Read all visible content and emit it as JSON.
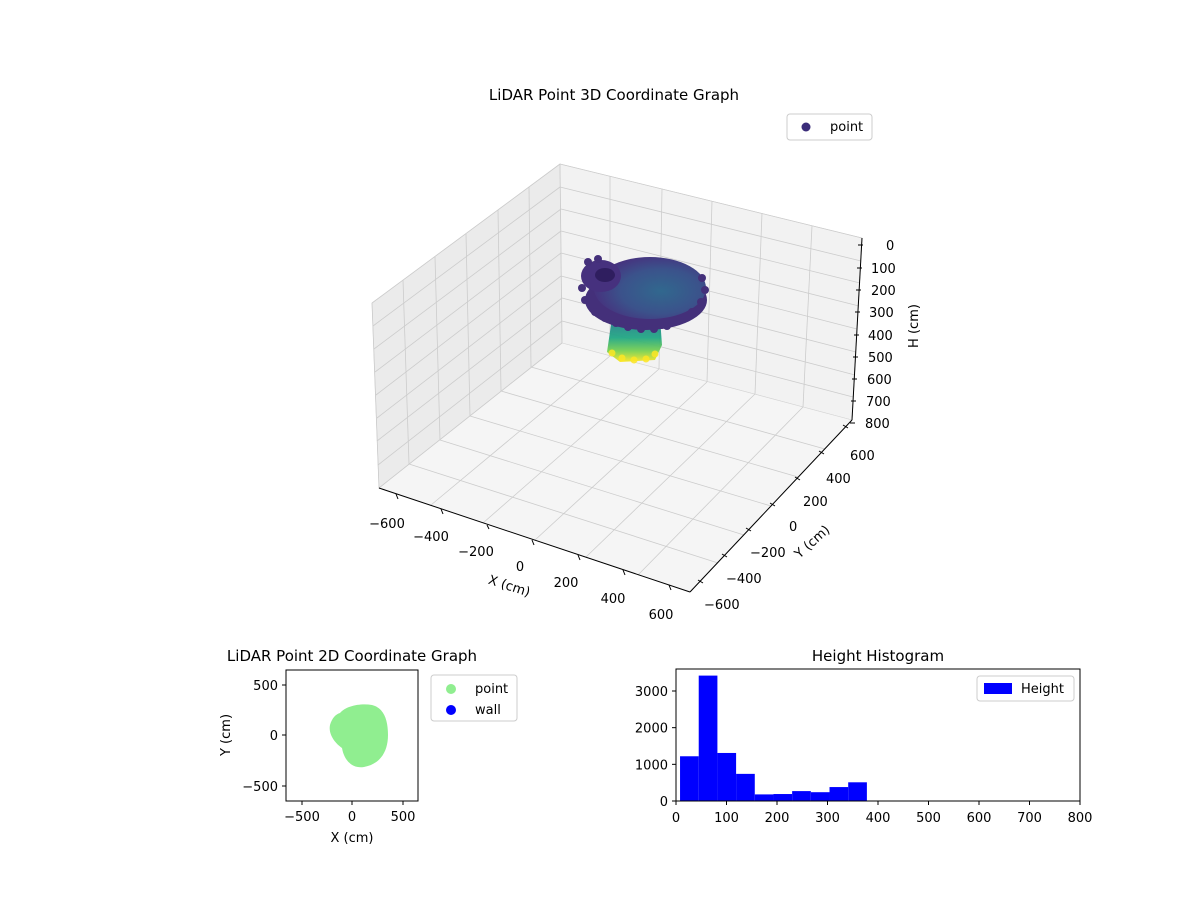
{
  "chart_data": [
    {
      "type": "scatter3d",
      "title": "LiDAR Point 3D Coordinate Graph",
      "xlabel": "X (cm)",
      "ylabel": "Y (cm)",
      "zlabel": "H (cm)",
      "xlim": [
        -600,
        600
      ],
      "ylim": [
        -600,
        600
      ],
      "zlim": [
        0,
        800
      ],
      "z_inverted": true,
      "xticks": [
        "−600",
        "−400",
        "−200",
        "0",
        "200",
        "400",
        "600"
      ],
      "yticks": [
        "−600",
        "−400",
        "−200",
        "0",
        "200",
        "400",
        "600"
      ],
      "zticks": [
        "0",
        "100",
        "200",
        "300",
        "400",
        "500",
        "600",
        "700",
        "800"
      ],
      "grid": true,
      "legend": {
        "position": "top-right",
        "entries": [
          {
            "name": "point",
            "color": "#3b2d7a"
          }
        ]
      },
      "colormap": "viridis"
    },
    {
      "type": "scatter",
      "title": "LiDAR Point 2D Coordinate Graph",
      "xlabel": "X (cm)",
      "ylabel": "Y (cm)",
      "xlim": [
        -650,
        650
      ],
      "ylim": [
        -650,
        650
      ],
      "xticks": [
        "−500",
        "0",
        "500"
      ],
      "yticks": [
        "−500",
        "0",
        "500"
      ],
      "series": [
        {
          "name": "point",
          "color": "#90ee90"
        },
        {
          "name": "wall",
          "color": "#0000ff"
        }
      ],
      "legend": {
        "position": "outside-right"
      }
    },
    {
      "type": "bar",
      "title": "Height Histogram",
      "xlabel": "",
      "ylabel": "",
      "xlim": [
        0,
        800
      ],
      "ylim": [
        0,
        3600
      ],
      "xticks": [
        "0",
        "100",
        "200",
        "300",
        "400",
        "500",
        "600",
        "700",
        "800"
      ],
      "yticks": [
        "0",
        "1000",
        "2000",
        "3000"
      ],
      "series": [
        {
          "name": "Height",
          "color": "#0000ff"
        }
      ],
      "bins": [
        {
          "x0": 8,
          "x1": 45,
          "value": 1220
        },
        {
          "x0": 45,
          "x1": 82,
          "value": 3420
        },
        {
          "x0": 82,
          "x1": 119,
          "value": 1310
        },
        {
          "x0": 119,
          "x1": 156,
          "value": 740
        },
        {
          "x0": 156,
          "x1": 193,
          "value": 180
        },
        {
          "x0": 193,
          "x1": 230,
          "value": 190
        },
        {
          "x0": 230,
          "x1": 267,
          "value": 270
        },
        {
          "x0": 267,
          "x1": 304,
          "value": 240
        },
        {
          "x0": 304,
          "x1": 341,
          "value": 380
        },
        {
          "x0": 341,
          "x1": 378,
          "value": 510
        }
      ],
      "legend": {
        "position": "top-right"
      }
    }
  ]
}
